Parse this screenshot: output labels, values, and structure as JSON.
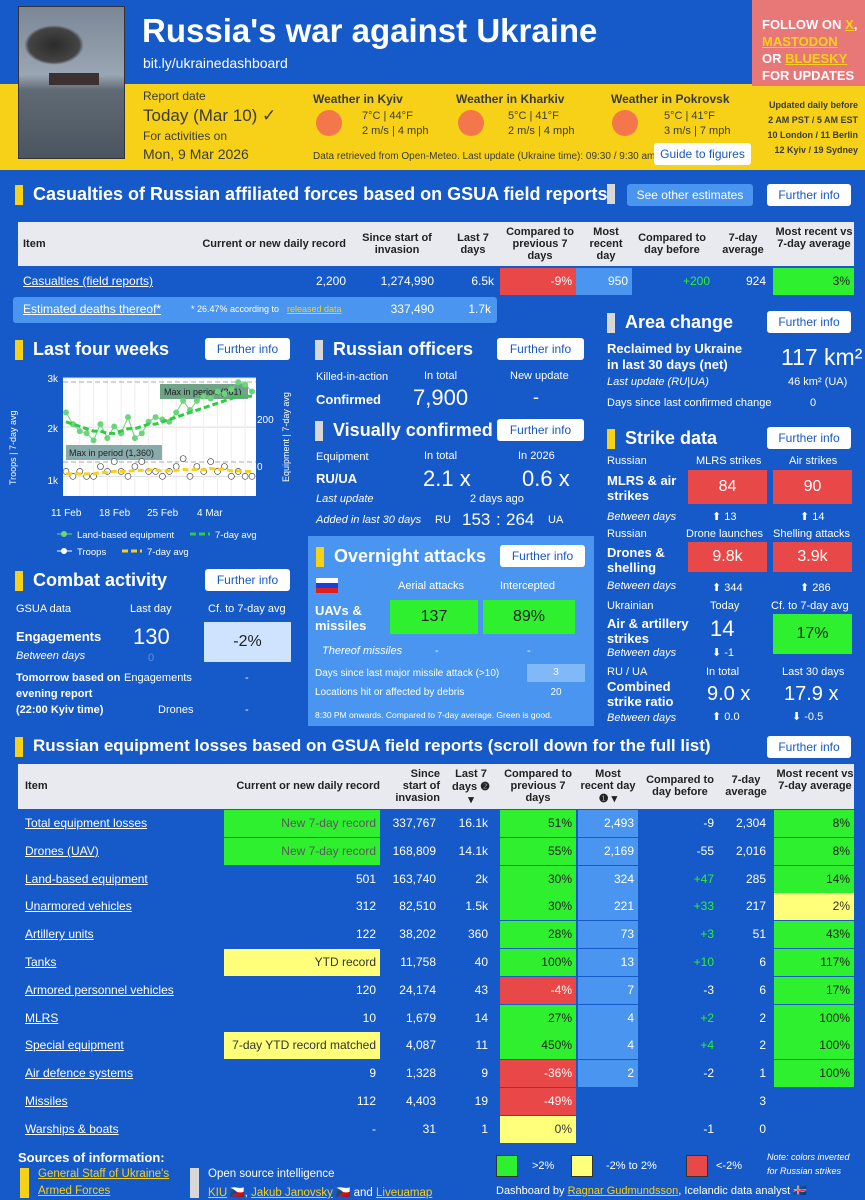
{
  "header": {
    "title": "Russia's war against Ukraine",
    "url": "bit.ly/ukrainedashboard",
    "report_label": "Report date",
    "report_value": "Today (Mar 10) ✓",
    "activities_label": "For activities on",
    "activities_date": "Mon, 9 Mar 2026",
    "weather": [
      {
        "title": "Weather in Kyiv",
        "l1": "7°C | 44°F",
        "l2": "2 m/s | 4 mph"
      },
      {
        "title": "Weather in Kharkiv",
        "l1": "5°C | 41°F",
        "l2": "2 m/s | 4 mph"
      },
      {
        "title": "Weather in Pokrovsk",
        "l1": "5°C | 41°F",
        "l2": "3 m/s | 7 mph"
      }
    ],
    "retrieved": "Data retrieved from Open-Meteo. Last update (Ukraine time): 09:30 / 9:30 am",
    "guide": "Guide to figures",
    "follow_a": "FOLLOW ON",
    "follow_x": "X",
    "follow_b": "MASTODON",
    "follow_or": "OR",
    "follow_c": "BLUESKY",
    "follow_d": "FOR UPDATES",
    "updated": [
      "Updated daily before",
      "2 AM PST / 5 AM EST",
      "10 London / 11 Berlin",
      "12 Kyiv / 19 Sydney"
    ]
  },
  "casualties": {
    "title": "Casualties of Russian affiliated forces based on GSUA field reports",
    "other_btn": "See other estimates",
    "further": "Further info",
    "headers": [
      "Item",
      "Current or new daily record",
      "Since start of invasion",
      "Last 7 days",
      "Compared to previous 7 days",
      "Most recent day",
      "Compared to day before",
      "7-day average",
      "Most recent vs 7-day average"
    ],
    "row": [
      "Casualties (field reports)",
      "2,200",
      "1,274,990",
      "6.5k",
      "-9%",
      "950",
      "+200",
      "924",
      "3%"
    ],
    "est": [
      "Estimated deaths thereof*",
      "* 26.47% according to",
      "released data",
      "337,490",
      "1.7k"
    ]
  },
  "four_weeks": {
    "title": "Last four weeks",
    "further": "Further info",
    "yl": "Troops | 7-day avg",
    "yr": "Equipment | 7-day avg",
    "yticks": [
      "3k",
      "2k",
      "1k"
    ],
    "rticks": [
      "200",
      "0"
    ],
    "xticks": [
      "11 Feb",
      "18 Feb",
      "25 Feb",
      "4 Mar"
    ],
    "max1": "Max in period (361)",
    "max2": "Max in period (1,360)",
    "leg": [
      "Land-based equipment",
      "7-day avg",
      "Troops",
      "7-day avg"
    ]
  },
  "chart_data": {
    "type": "line",
    "title": "Last four weeks",
    "xlabel": "",
    "ylabel": "Troops | 7-day avg",
    "ylim": [
      0,
      3000
    ],
    "x": [
      "10 Feb",
      "11 Feb",
      "12 Feb",
      "13 Feb",
      "14 Feb",
      "15 Feb",
      "16 Feb",
      "17 Feb",
      "18 Feb",
      "19 Feb",
      "20 Feb",
      "21 Feb",
      "22 Feb",
      "23 Feb",
      "24 Feb",
      "25 Feb",
      "26 Feb",
      "27 Feb",
      "28 Feb",
      "1 Mar",
      "2 Mar",
      "3 Mar",
      "4 Mar",
      "5 Mar",
      "6 Mar",
      "7 Mar",
      "8 Mar",
      "9 Mar"
    ],
    "series": [
      {
        "name": "Land-based equipment",
        "axis": "right",
        "values": [
          230,
          180,
          150,
          140,
          110,
          180,
          120,
          170,
          140,
          210,
          120,
          140,
          190,
          210,
          200,
          190,
          230,
          280,
          240,
          280,
          300,
          290,
          320,
          310,
          330,
          360,
          350,
          320
        ]
      },
      {
        "name": "7-day avg (equipment)",
        "axis": "right",
        "values": [
          190,
          180,
          170,
          160,
          150,
          150,
          140,
          140,
          150,
          160,
          160,
          170,
          180,
          180,
          190,
          200,
          210,
          220,
          230,
          240,
          250,
          260,
          270,
          280,
          290,
          300,
          300,
          300
        ]
      },
      {
        "name": "Troops",
        "axis": "left",
        "values": [
          1100,
          1000,
          1100,
          1000,
          1000,
          1200,
          1100,
          1300,
          1100,
          1000,
          1200,
          1300,
          1100,
          1100,
          1000,
          1100,
          1200,
          1360,
          1000,
          1200,
          1100,
          1300,
          1100,
          1200,
          1000,
          1100,
          1000,
          1000
        ]
      },
      {
        "name": "7-day avg (troops)",
        "axis": "left",
        "values": [
          1050,
          1050,
          1050,
          1050,
          1050,
          1080,
          1080,
          1100,
          1100,
          1100,
          1120,
          1120,
          1130,
          1130,
          1110,
          1110,
          1120,
          1140,
          1130,
          1140,
          1130,
          1160,
          1140,
          1150,
          1110,
          1110,
          1100,
          1100
        ]
      }
    ]
  },
  "officers": {
    "title": "Russian officers",
    "further": "Further info",
    "kia": "Killed-in-action",
    "total_l": "In total",
    "new_l": "New update",
    "confirmed": "Confirmed",
    "total": "7,900",
    "new": "-"
  },
  "visual": {
    "title": "Visually confirmed",
    "further": "Further info",
    "equip": "Equipment",
    "total_l": "In total",
    "y_l": "In 2026",
    "ruua": "RU/UA",
    "total": "2.1 x",
    "y": "0.6 x",
    "last_l": "Last update",
    "last": "2 days ago",
    "added_l": "Added in last 30 days",
    "ru": "RU",
    "ru_v": "153",
    "colon": ":",
    "ua_v": "264",
    "ua": "UA"
  },
  "overnight": {
    "title": "Overnight attacks",
    "further": "Further info",
    "aerial": "Aerial attacks",
    "intercepted": "Intercepted",
    "uav": "UAVs & missiles",
    "aerial_v": "137",
    "int_v": "89%",
    "thereof": "Thereof missiles",
    "thereof_a": "-",
    "thereof_b": "-",
    "days_l": "Days since last major missile attack (>10)",
    "days_v": "3",
    "loc_l": "Locations hit or affected by debris",
    "loc_v": "20",
    "note": "8:30 PM onwards. Compared to 7-day average. Green is good."
  },
  "combat": {
    "title": "Combat activity",
    "further": "Further info",
    "gsua": "GSUA data",
    "last": "Last day",
    "cf": "Cf. to 7-day avg",
    "eng": "Engagements",
    "eng_v": "130",
    "eng_cf": "-2%",
    "between": "Between days",
    "between_v": "0",
    "tom": "Tomorrow based on evening report (22:00 Kyiv time)",
    "eng2": "Engagements",
    "drones": "Drones",
    "d1": "-",
    "d2": "-"
  },
  "area": {
    "title": "Area change",
    "further": "Further info",
    "recl": "Reclaimed by Ukraine in last 30 days (net)",
    "recl_v": "117 km²",
    "lu": "Last update (RU|UA)",
    "lu_v": "46 km² (UA)",
    "days": "Days since last confirmed change",
    "days_v": "0"
  },
  "strike": {
    "title": "Strike data",
    "further": "Further info",
    "russian": "Russian",
    "mlrs_h": "MLRS strikes",
    "air_h": "Air strikes",
    "mlrs_l": "MLRS & air strikes",
    "mlrs_v": "84",
    "air_v": "90",
    "bd": "Between days",
    "bd1": "⬆ 13",
    "bd2": "⬆ 14",
    "russian2": "Russian",
    "dr_h": "Drone launches",
    "sh_h": "Shelling attacks",
    "dr_l": "Drones & shelling",
    "dr_v": "9.8k",
    "sh_v": "3.9k",
    "bd3": "⬆ 344",
    "bd4": "⬆ 286",
    "ukr": "Ukrainian",
    "today": "Today",
    "cf": "Cf. to 7-day avg",
    "aa_l": "Air & artillery strikes",
    "aa_v": "14",
    "aa_cf": "17%",
    "bd5": "⬇ -1",
    "ruua": "RU / UA",
    "tot": "In total",
    "l30": "Last 30 days",
    "comb": "Combined strike ratio",
    "comb_v": "9.0 x",
    "l30_v": "17.9 x",
    "bd6": "⬆ 0.0",
    "bd7": "⬇ -0.5"
  },
  "equipment": {
    "title": "Russian equipment losses based on GSUA field reports (scroll down for the full list)",
    "further": "Further info",
    "headers": [
      "Item",
      "Current or new daily record",
      "Since start of invasion",
      "Last 7 days ❷ ▾",
      "Compared to previous 7 days",
      "Most recent day ❶ ▾",
      "Compared to day before",
      "7-day average",
      "Most recent vs 7-day average"
    ],
    "rows": [
      [
        "Total equipment losses",
        "New 7-day record",
        "337,767",
        "16.1k",
        "51%",
        "2,493",
        "-9",
        "2,304",
        "8%"
      ],
      [
        "Drones (UAV)",
        "New 7-day record",
        "168,809",
        "14.1k",
        "55%",
        "2,169",
        "-55",
        "2,016",
        "8%"
      ],
      [
        "Land-based equipment",
        "501",
        "163,740",
        "2k",
        "30%",
        "324",
        "+47",
        "285",
        "14%"
      ],
      [
        "Unarmored vehicles",
        "312",
        "82,510",
        "1.5k",
        "30%",
        "221",
        "+33",
        "217",
        "2%"
      ],
      [
        "Artillery units",
        "122",
        "38,202",
        "360",
        "28%",
        "73",
        "+3",
        "51",
        "43%"
      ],
      [
        "Tanks",
        "YTD record",
        "11,758",
        "40",
        "100%",
        "13",
        "+10",
        "6",
        "117%"
      ],
      [
        "Armored personnel vehicles",
        "120",
        "24,174",
        "43",
        "-4%",
        "7",
        "-3",
        "6",
        "17%"
      ],
      [
        "MLRS",
        "10",
        "1,679",
        "14",
        "27%",
        "4",
        "+2",
        "2",
        "100%"
      ],
      [
        "Special equipment",
        "7-day YTD record matched",
        "4,087",
        "11",
        "450%",
        "4",
        "+4",
        "2",
        "100%"
      ],
      [
        "Air defence systems",
        "9",
        "1,328",
        "9",
        "-36%",
        "2",
        "-2",
        "1",
        "100%"
      ],
      [
        "Missiles",
        "112",
        "4,403",
        "19",
        "-49%",
        "",
        "",
        "3",
        ""
      ],
      [
        "Warships & boats",
        "-",
        "31",
        "1",
        "0%",
        "",
        "-1",
        "0",
        ""
      ]
    ]
  },
  "footer": {
    "sources": "Sources of information:",
    "gs1": "General Staff of Ukraine's",
    "gs2": "Armed Forces",
    "osint": "Open source intelligence",
    "kiu": "KIU",
    "jj": "Jakub Janovsky",
    "and": "and",
    "lm": "Liveuamap",
    "leg1": ">2%",
    "leg2": "-2% to 2%",
    "leg3": "<-2%",
    "dash": "Dashboard by",
    "author": "Ragnar Gudmundsson",
    "role": ", Icelandic data analyst",
    "note": "Note: colors inverted for Russian strikes"
  },
  "colors": {
    "blue": "#1659c8",
    "yellow": "#f7d117",
    "green": "#2ef02e",
    "red": "#e84848"
  }
}
